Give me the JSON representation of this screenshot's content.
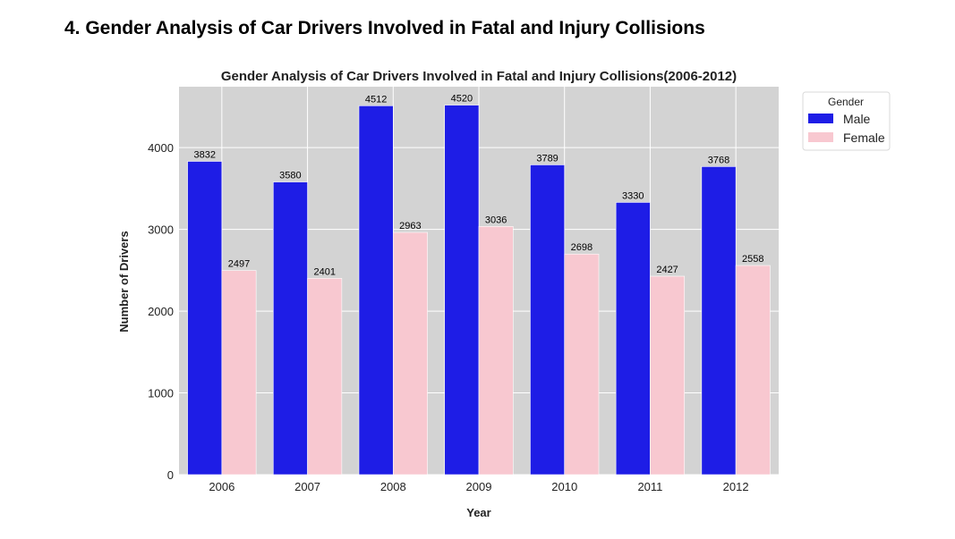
{
  "page": {
    "heading": "4. Gender Analysis of Car Drivers Involved in Fatal and Injury Collisions"
  },
  "chart_data": {
    "type": "bar",
    "title": "Gender Analysis of Car Drivers Involved in Fatal and Injury Collisions(2006-2012)",
    "xlabel": "Year",
    "ylabel": "Number of Drivers",
    "categories": [
      "2006",
      "2007",
      "2008",
      "2009",
      "2010",
      "2011",
      "2012"
    ],
    "series": [
      {
        "name": "Male",
        "color": "#1e1de6",
        "values": [
          3832,
          3580,
          4512,
          4520,
          3789,
          3330,
          3768
        ]
      },
      {
        "name": "Female",
        "color": "#f8c8d0",
        "values": [
          2497,
          2401,
          2963,
          3036,
          2698,
          2427,
          2558
        ]
      }
    ],
    "yticks": [
      0,
      1000,
      2000,
      3000,
      4000
    ],
    "ylim": [
      0,
      4745
    ],
    "grid": true,
    "background": "#d3d3d3",
    "grid_color": "#ffffff",
    "data_labels": true,
    "legend": {
      "title": "Gender",
      "placement": "outside-top-right"
    }
  }
}
